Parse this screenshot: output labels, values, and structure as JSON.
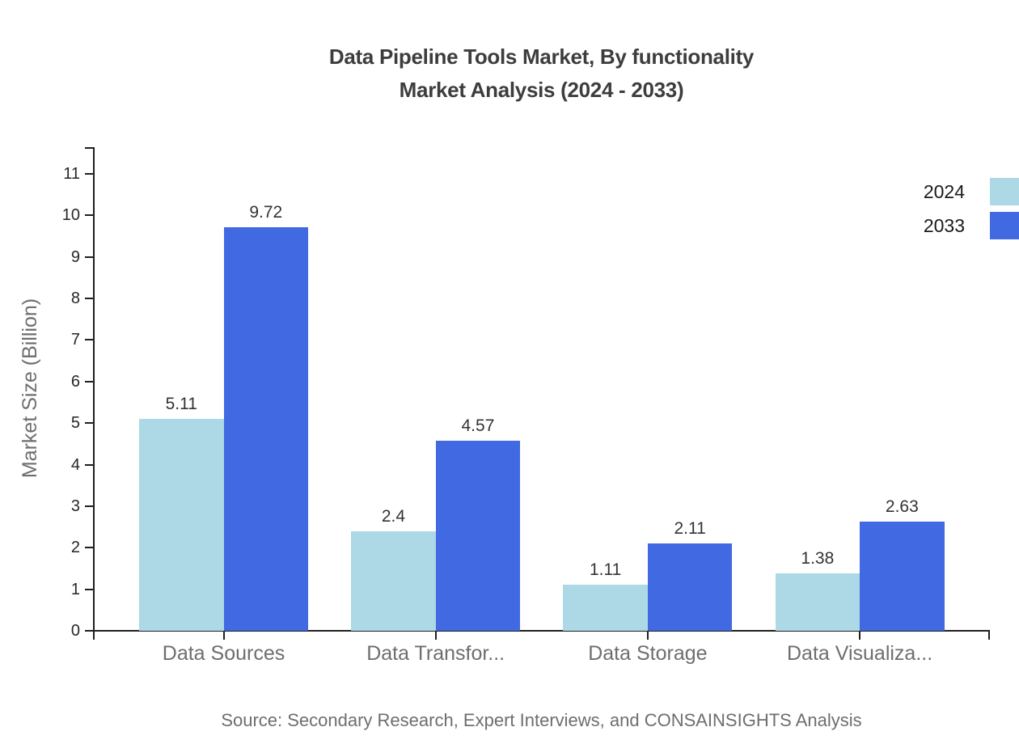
{
  "chart_data": {
    "type": "bar",
    "title_line1": "Data Pipeline Tools Market, By functionality",
    "title_line2": "Market Analysis (2024 - 2033)",
    "ylabel": "Market Size (Billion)",
    "xlabel": "",
    "categories": [
      "Data Sources",
      "Data Transfor...",
      "Data Storage",
      "Data Visualiza..."
    ],
    "series": [
      {
        "name": "2024",
        "color": "#add8e6",
        "values": [
          5.11,
          2.4,
          1.11,
          1.38
        ]
      },
      {
        "name": "2033",
        "color": "#4169e1",
        "values": [
          9.72,
          4.57,
          2.11,
          2.63
        ]
      }
    ],
    "yticks": [
      0,
      1,
      2,
      3,
      4,
      5,
      6,
      7,
      8,
      9,
      10,
      11
    ],
    "ylim": [
      0,
      11.6
    ],
    "grid": false,
    "legend_position": "top-right",
    "value_labels_shown": true,
    "source": "Source: Secondary Research, Expert Interviews, and CONSAINSIGHTS Analysis",
    "colors": {
      "title": "#3d3d3d",
      "axis": "#1f1f1f",
      "tick_label": "#262626",
      "muted_label": "#6e6e6e",
      "value_label": "#333333",
      "background": "#ffffff"
    }
  }
}
